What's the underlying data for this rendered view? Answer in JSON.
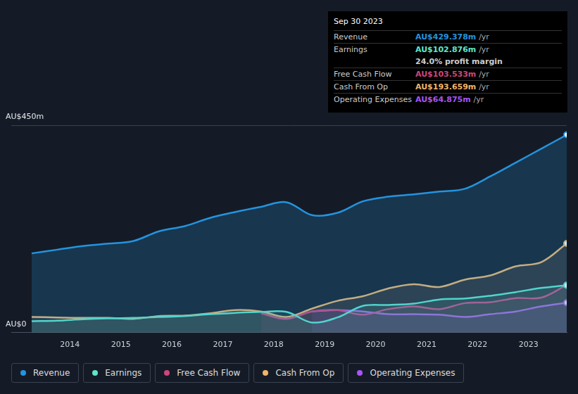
{
  "chart_data": {
    "type": "line",
    "x": [
      2013.25,
      2013.75,
      2014.25,
      2014.75,
      2015.25,
      2015.75,
      2016.25,
      2016.75,
      2017.25,
      2017.75,
      2018.25,
      2018.75,
      2019.25,
      2019.75,
      2020.25,
      2020.75,
      2021.25,
      2021.75,
      2022.25,
      2022.75,
      2023.25,
      2023.75
    ],
    "series": [
      {
        "name": "Revenue",
        "color": "#2394df",
        "values": [
          172,
          180,
          188,
          193,
          199,
          220,
          231,
          249,
          262,
          273,
          283,
          255,
          260,
          285,
          295,
          300,
          306,
          312,
          339,
          369,
          399,
          429.378
        ]
      },
      {
        "name": "Earnings",
        "color": "#5ee6c8",
        "values": [
          25,
          26,
          29,
          31,
          32,
          34,
          36,
          40,
          43,
          45,
          45,
          22,
          33,
          58,
          60,
          63,
          72,
          74,
          80,
          88,
          97,
          102.876
        ]
      },
      {
        "name": "Free Cash Flow",
        "color": "#d0457a",
        "values": [
          null,
          null,
          null,
          null,
          null,
          null,
          null,
          null,
          null,
          42,
          30,
          46,
          49,
          39,
          51,
          57,
          51,
          64,
          66,
          75,
          76,
          103.533
        ]
      },
      {
        "name": "Cash From Op",
        "color": "#f0b46a",
        "values": [
          34,
          33,
          32,
          32,
          30,
          36,
          37,
          42,
          49,
          46,
          34,
          52,
          69,
          79,
          96,
          105,
          99,
          115,
          124,
          144,
          153,
          193.659
        ]
      },
      {
        "name": "Operating Expenses",
        "color": "#a855f7",
        "values": [
          null,
          null,
          null,
          null,
          null,
          null,
          null,
          null,
          null,
          null,
          null,
          46,
          49,
          46,
          40,
          40,
          39,
          34,
          40,
          46,
          57,
          64.875
        ]
      }
    ],
    "xlim": [
      2012.85,
      2023.75
    ],
    "xticks": [
      2014,
      2015,
      2016,
      2017,
      2018,
      2019,
      2020,
      2021,
      2022,
      2023
    ],
    "ylim": [
      0,
      450
    ],
    "yticks": [
      {
        "value": 0,
        "label": "AU$0"
      },
      {
        "value": 450,
        "label": "AU$450m"
      }
    ],
    "grid": true,
    "legend": "bottom",
    "annotation": {
      "title": "Sep 30 2023",
      "rows": [
        {
          "label": "Revenue",
          "value": "AU$429.378m",
          "unit": "/yr"
        },
        {
          "label": "Earnings",
          "value": "AU$102.876m",
          "unit": "/yr"
        },
        {
          "label": "Free Cash Flow",
          "value": "AU$103.533m",
          "unit": "/yr"
        },
        {
          "label": "Cash From Op",
          "value": "AU$193.659m",
          "unit": "/yr"
        },
        {
          "label": "Operating Expenses",
          "value": "AU$64.875m",
          "unit": "/yr"
        }
      ],
      "margin_row": 2,
      "margin": "24.0% profit margin"
    }
  }
}
